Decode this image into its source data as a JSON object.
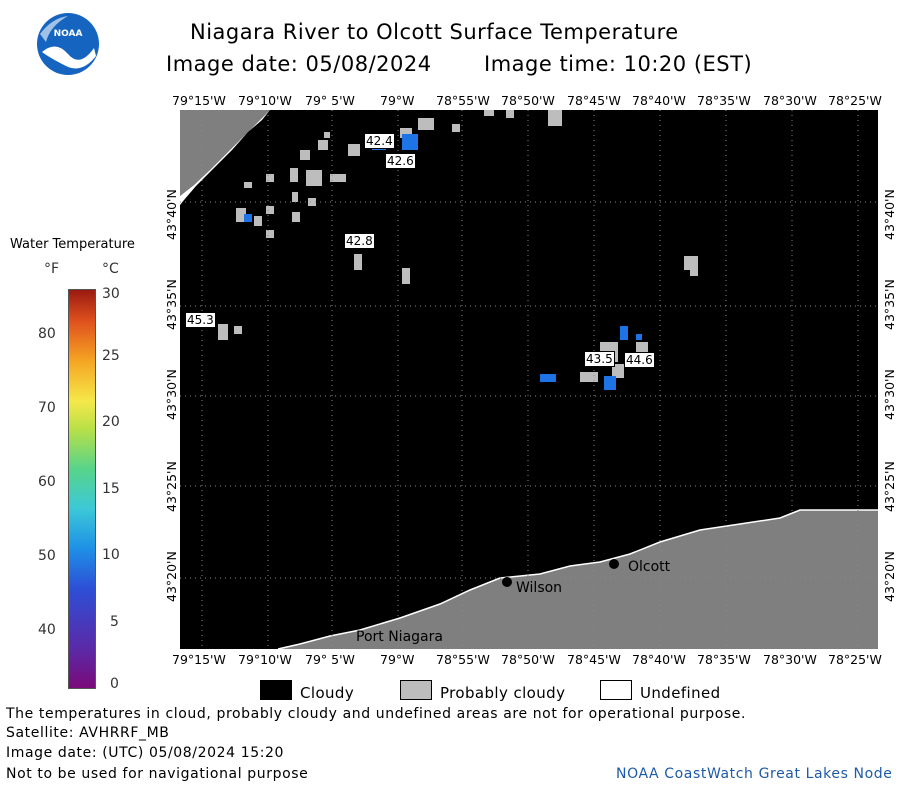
{
  "header": {
    "title": "Niagara River to Olcott Surface Temperature",
    "image_date": "Image date: 05/08/2024",
    "image_time": "Image time: 10:20 (EST)"
  },
  "logo": {
    "text": "NOAA",
    "color": "#1565c0"
  },
  "colorbar": {
    "title": "Water Temperature",
    "unit_f": "°F",
    "unit_c": "°C",
    "f_ticks": [
      "80",
      "70",
      "60",
      "50",
      "40"
    ],
    "c_ticks": [
      "30",
      "25",
      "20",
      "15",
      "10",
      "5",
      "0"
    ]
  },
  "axes": {
    "lon_labels": [
      "79°15'W",
      "79°10'W",
      "79° 5'W",
      "79°W",
      "78°55'W",
      "78°50'W",
      "78°45'W",
      "78°40'W",
      "78°35'W",
      "78°30'W",
      "78°25'W"
    ],
    "lat_labels": [
      "43°40'N",
      "43°35'N",
      "43°30'N",
      "43°25'N",
      "43°20'N"
    ]
  },
  "temperature_labels": [
    "42.4",
    "42.6",
    "42.8",
    "45.3",
    "43.5",
    "44.6"
  ],
  "places": [
    "Olcott",
    "Wilson",
    "Port Niagara"
  ],
  "legend": {
    "cloudy": "Cloudy",
    "probably_cloudy": "Probably cloudy",
    "undefined": "Undefined"
  },
  "footer": {
    "disclaimer": "The temperatures in cloud, probably cloudy and undefined areas are not for operational purpose.",
    "satellite": "Satellite: AVHRRF_MB",
    "utc_date": "Image date: (UTC) 05/08/2024  15:20",
    "navigation": "Not to be used for navigational purpose",
    "credit": "NOAA CoastWatch Great Lakes Node"
  },
  "colors": {
    "cloudy": "#000000",
    "probably_cloudy": "#bdbdbd",
    "land": "#7f7f7f",
    "water_temp": "#1e74e6",
    "credit": "#1e5aa8"
  }
}
